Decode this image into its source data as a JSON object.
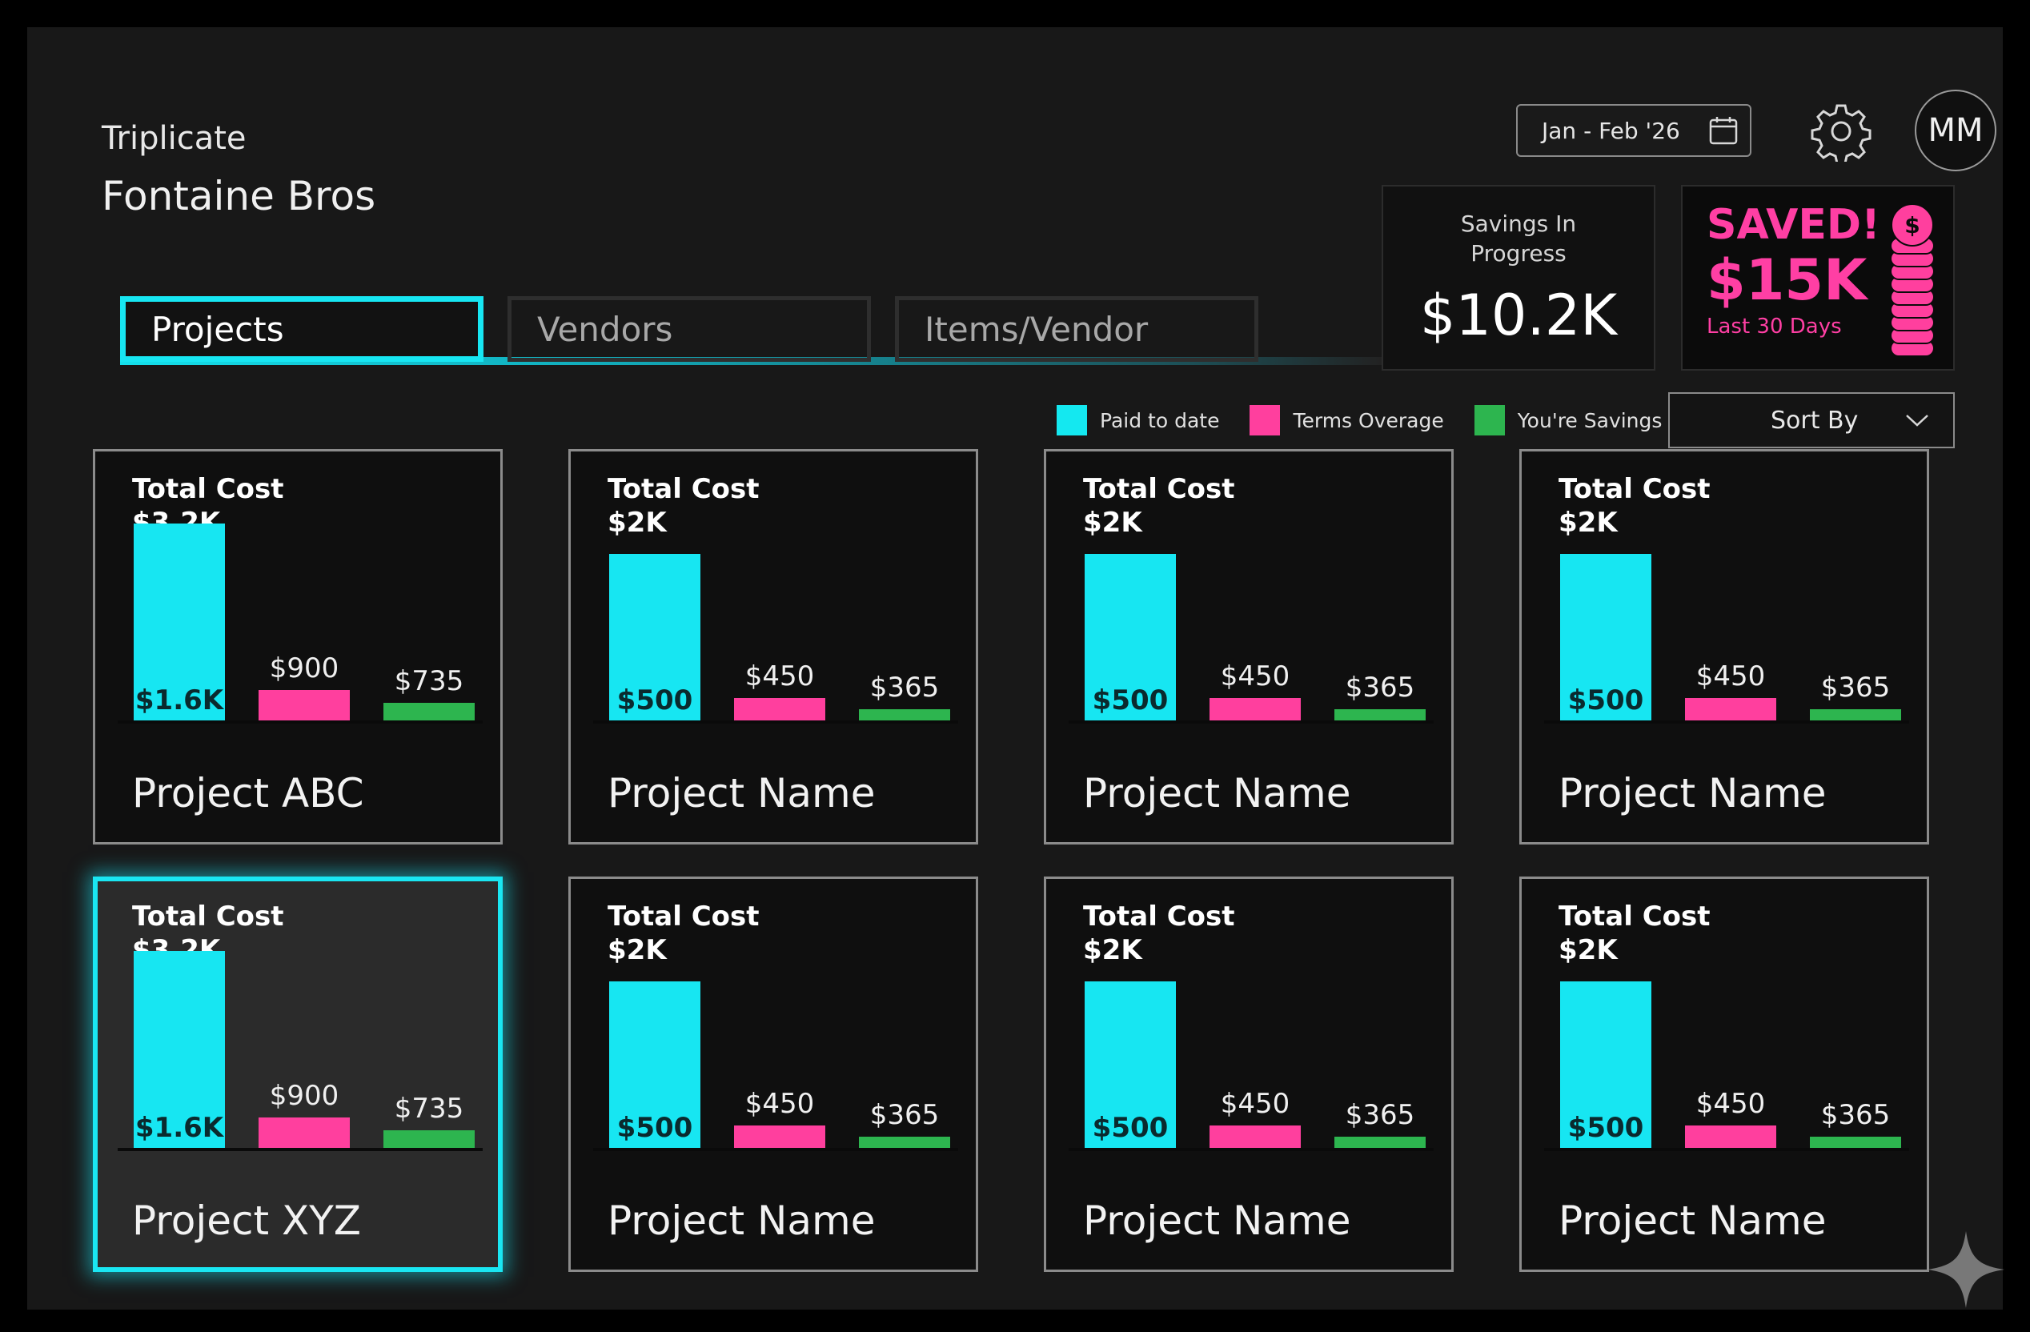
{
  "header": {
    "app_name": "Triplicate",
    "company": "Fontaine Bros",
    "date_range": "Jan - Feb '26",
    "avatar_initials": "MM"
  },
  "summary": {
    "savings_in_progress_label": "Savings In Progress",
    "savings_in_progress_value": "$10.2K",
    "saved_title": "SAVED!",
    "saved_value": "$15K",
    "saved_period": "Last 30 Days",
    "coin_symbol": "$"
  },
  "tabs": [
    {
      "label": "Projects",
      "active": true
    },
    {
      "label": "Vendors",
      "active": false
    },
    {
      "label": "Items/Vendor",
      "active": false
    }
  ],
  "legend": [
    {
      "label": "Paid to date",
      "color": "#14e8f0"
    },
    {
      "label": "Terms Overage",
      "color": "#ff3f9e"
    },
    {
      "label": "You're Savings",
      "color": "#2db54f"
    }
  ],
  "sort": {
    "label": "Sort By"
  },
  "colors": {
    "accent": "#17e6f2",
    "pink": "#ff3f9e",
    "green": "#2db54f"
  },
  "projects": [
    {
      "name": "Project ABC",
      "total_label": "Total Cost",
      "total_value": "$3.2K",
      "selected": false,
      "chart_data": {
        "type": "bar",
        "categories": [
          "Paid to date",
          "Terms Overage",
          "You're Savings"
        ],
        "values": [
          1600,
          900,
          735
        ],
        "labels": [
          "$1.6K",
          "$900",
          "$735"
        ]
      }
    },
    {
      "name": "Project Name",
      "total_label": "Total Cost",
      "total_value": "$2K",
      "selected": false,
      "chart_data": {
        "type": "bar",
        "categories": [
          "Paid to date",
          "Terms Overage",
          "You're Savings"
        ],
        "values": [
          500,
          450,
          365
        ],
        "labels": [
          "$500",
          "$450",
          "$365"
        ]
      }
    },
    {
      "name": "Project Name",
      "total_label": "Total Cost",
      "total_value": "$2K",
      "selected": false,
      "chart_data": {
        "type": "bar",
        "categories": [
          "Paid to date",
          "Terms Overage",
          "You're Savings"
        ],
        "values": [
          500,
          450,
          365
        ],
        "labels": [
          "$500",
          "$450",
          "$365"
        ]
      }
    },
    {
      "name": "Project Name",
      "total_label": "Total Cost",
      "total_value": "$2K",
      "selected": false,
      "chart_data": {
        "type": "bar",
        "categories": [
          "Paid to date",
          "Terms Overage",
          "You're Savings"
        ],
        "values": [
          500,
          450,
          365
        ],
        "labels": [
          "$500",
          "$450",
          "$365"
        ]
      }
    },
    {
      "name": "Project XYZ",
      "total_label": "Total Cost",
      "total_value": "$3.2K",
      "selected": true,
      "chart_data": {
        "type": "bar",
        "categories": [
          "Paid to date",
          "Terms Overage",
          "You're Savings"
        ],
        "values": [
          1600,
          900,
          735
        ],
        "labels": [
          "$1.6K",
          "$900",
          "$735"
        ]
      }
    },
    {
      "name": "Project Name",
      "total_label": "Total Cost",
      "total_value": "$2K",
      "selected": false,
      "chart_data": {
        "type": "bar",
        "categories": [
          "Paid to date",
          "Terms Overage",
          "You're Savings"
        ],
        "values": [
          500,
          450,
          365
        ],
        "labels": [
          "$500",
          "$450",
          "$365"
        ]
      }
    },
    {
      "name": "Project Name",
      "total_label": "Total Cost",
      "total_value": "$2K",
      "selected": false,
      "chart_data": {
        "type": "bar",
        "categories": [
          "Paid to date",
          "Terms Overage",
          "You're Savings"
        ],
        "values": [
          500,
          450,
          365
        ],
        "labels": [
          "$500",
          "$450",
          "$365"
        ]
      }
    },
    {
      "name": "Project Name",
      "total_label": "Total Cost",
      "total_value": "$2K",
      "selected": false,
      "chart_data": {
        "type": "bar",
        "categories": [
          "Paid to date",
          "Terms Overage",
          "You're Savings"
        ],
        "values": [
          500,
          450,
          365
        ],
        "labels": [
          "$500",
          "$450",
          "$365"
        ]
      }
    }
  ]
}
